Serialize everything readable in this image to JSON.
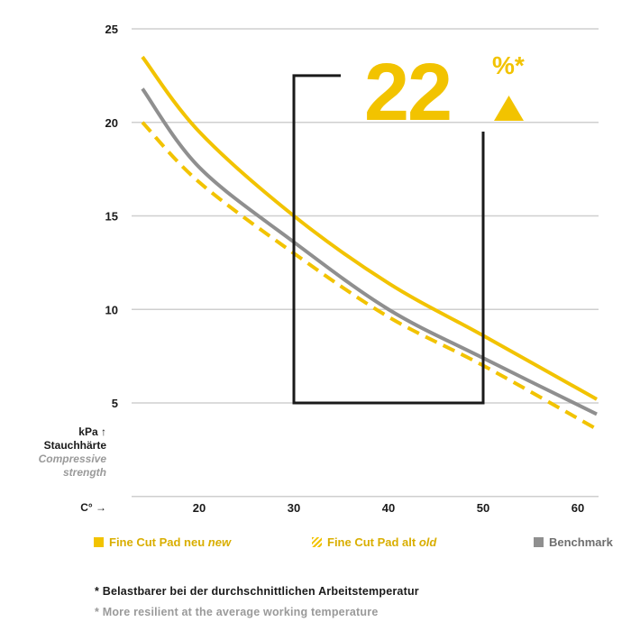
{
  "chart_data": {
    "type": "line",
    "x_label": "C°",
    "y_label": {
      "unit": "kPa",
      "de": "Stauchhärte",
      "en": "Compressive strength"
    },
    "xlim": [
      10,
      62
    ],
    "ylim": [
      0,
      25
    ],
    "x_ticks": [
      "20",
      "30",
      "40",
      "50",
      "60"
    ],
    "y_ticks": [
      "5",
      "10",
      "15",
      "20",
      "25"
    ],
    "grid": "horizontal",
    "series": [
      {
        "name": "Fine Cut Pad neu new",
        "name_main": "Fine Cut Pad neu",
        "name_em": "new",
        "color": "#f2c300",
        "style": "solid",
        "x": [
          14,
          20,
          30,
          40,
          50,
          62
        ],
        "y": [
          23.5,
          19.5,
          15.0,
          11.4,
          8.6,
          5.2
        ]
      },
      {
        "name": "Fine Cut Pad alt old",
        "name_main": "Fine Cut Pad alt",
        "name_em": "old",
        "color": "#f2c300",
        "style": "dashed",
        "x": [
          14,
          20,
          30,
          40,
          50,
          62
        ],
        "y": [
          20.0,
          16.8,
          13.0,
          9.6,
          7.0,
          3.6
        ]
      },
      {
        "name": "Benchmark",
        "color": "#8f8f8f",
        "style": "solid",
        "x": [
          14,
          20,
          30,
          40,
          50,
          62
        ],
        "y": [
          21.8,
          17.6,
          13.6,
          10.0,
          7.4,
          4.4
        ]
      }
    ],
    "highlight": {
      "value": "22",
      "unit": "%*",
      "x_range": [
        30,
        50
      ],
      "y_range": [
        5,
        22.5
      ]
    },
    "footnotes": [
      "* Belastbarer bei der durchschnittlichen Arbeitstemperatur",
      "* More resilient at the average working temperature"
    ]
  }
}
